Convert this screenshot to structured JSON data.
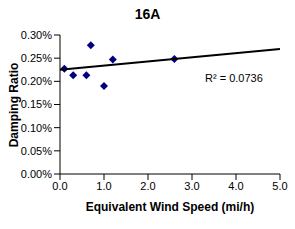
{
  "chart_data": {
    "type": "scatter",
    "title": "16A",
    "x_label": "Equivalent Wind Speed (mi/h)",
    "y_label": "Damping Ratio",
    "series": [
      {
        "type": "scatter",
        "marker": "diamond",
        "color": "#000080",
        "x": [
          0.1,
          0.3,
          0.6,
          0.7,
          1.0,
          1.2,
          2.6
        ],
        "values": [
          0.227,
          0.213,
          0.213,
          0.278,
          0.19,
          0.247,
          0.248
        ]
      },
      {
        "type": "line",
        "line_style": "solid",
        "color": "#000000",
        "x": [
          0,
          5
        ],
        "values": [
          0.225,
          0.27
        ]
      }
    ],
    "annotations": [
      "R² = 0.0736"
    ],
    "xlim": [
      0,
      5
    ],
    "xticks": [
      {
        "value": 0,
        "label": "0.0"
      },
      {
        "value": 1,
        "label": "1.0"
      },
      {
        "value": 2,
        "label": "2.0"
      },
      {
        "value": 3,
        "label": "3.0"
      },
      {
        "value": 4,
        "label": "4.0"
      },
      {
        "value": 5,
        "label": "5.0"
      }
    ],
    "ylim": [
      0,
      0.3
    ],
    "yticks": [
      {
        "value": 0,
        "label": "0.00%"
      },
      {
        "value": 0.05,
        "label": "0.05%"
      },
      {
        "value": 0.1,
        "label": "0.10%"
      },
      {
        "value": 0.15,
        "label": "0.15%"
      },
      {
        "value": 0.2,
        "label": "0.20%"
      },
      {
        "value": 0.25,
        "label": "0.25%"
      },
      {
        "value": 0.3,
        "label": "0.30%"
      }
    ],
    "grid": false
  }
}
